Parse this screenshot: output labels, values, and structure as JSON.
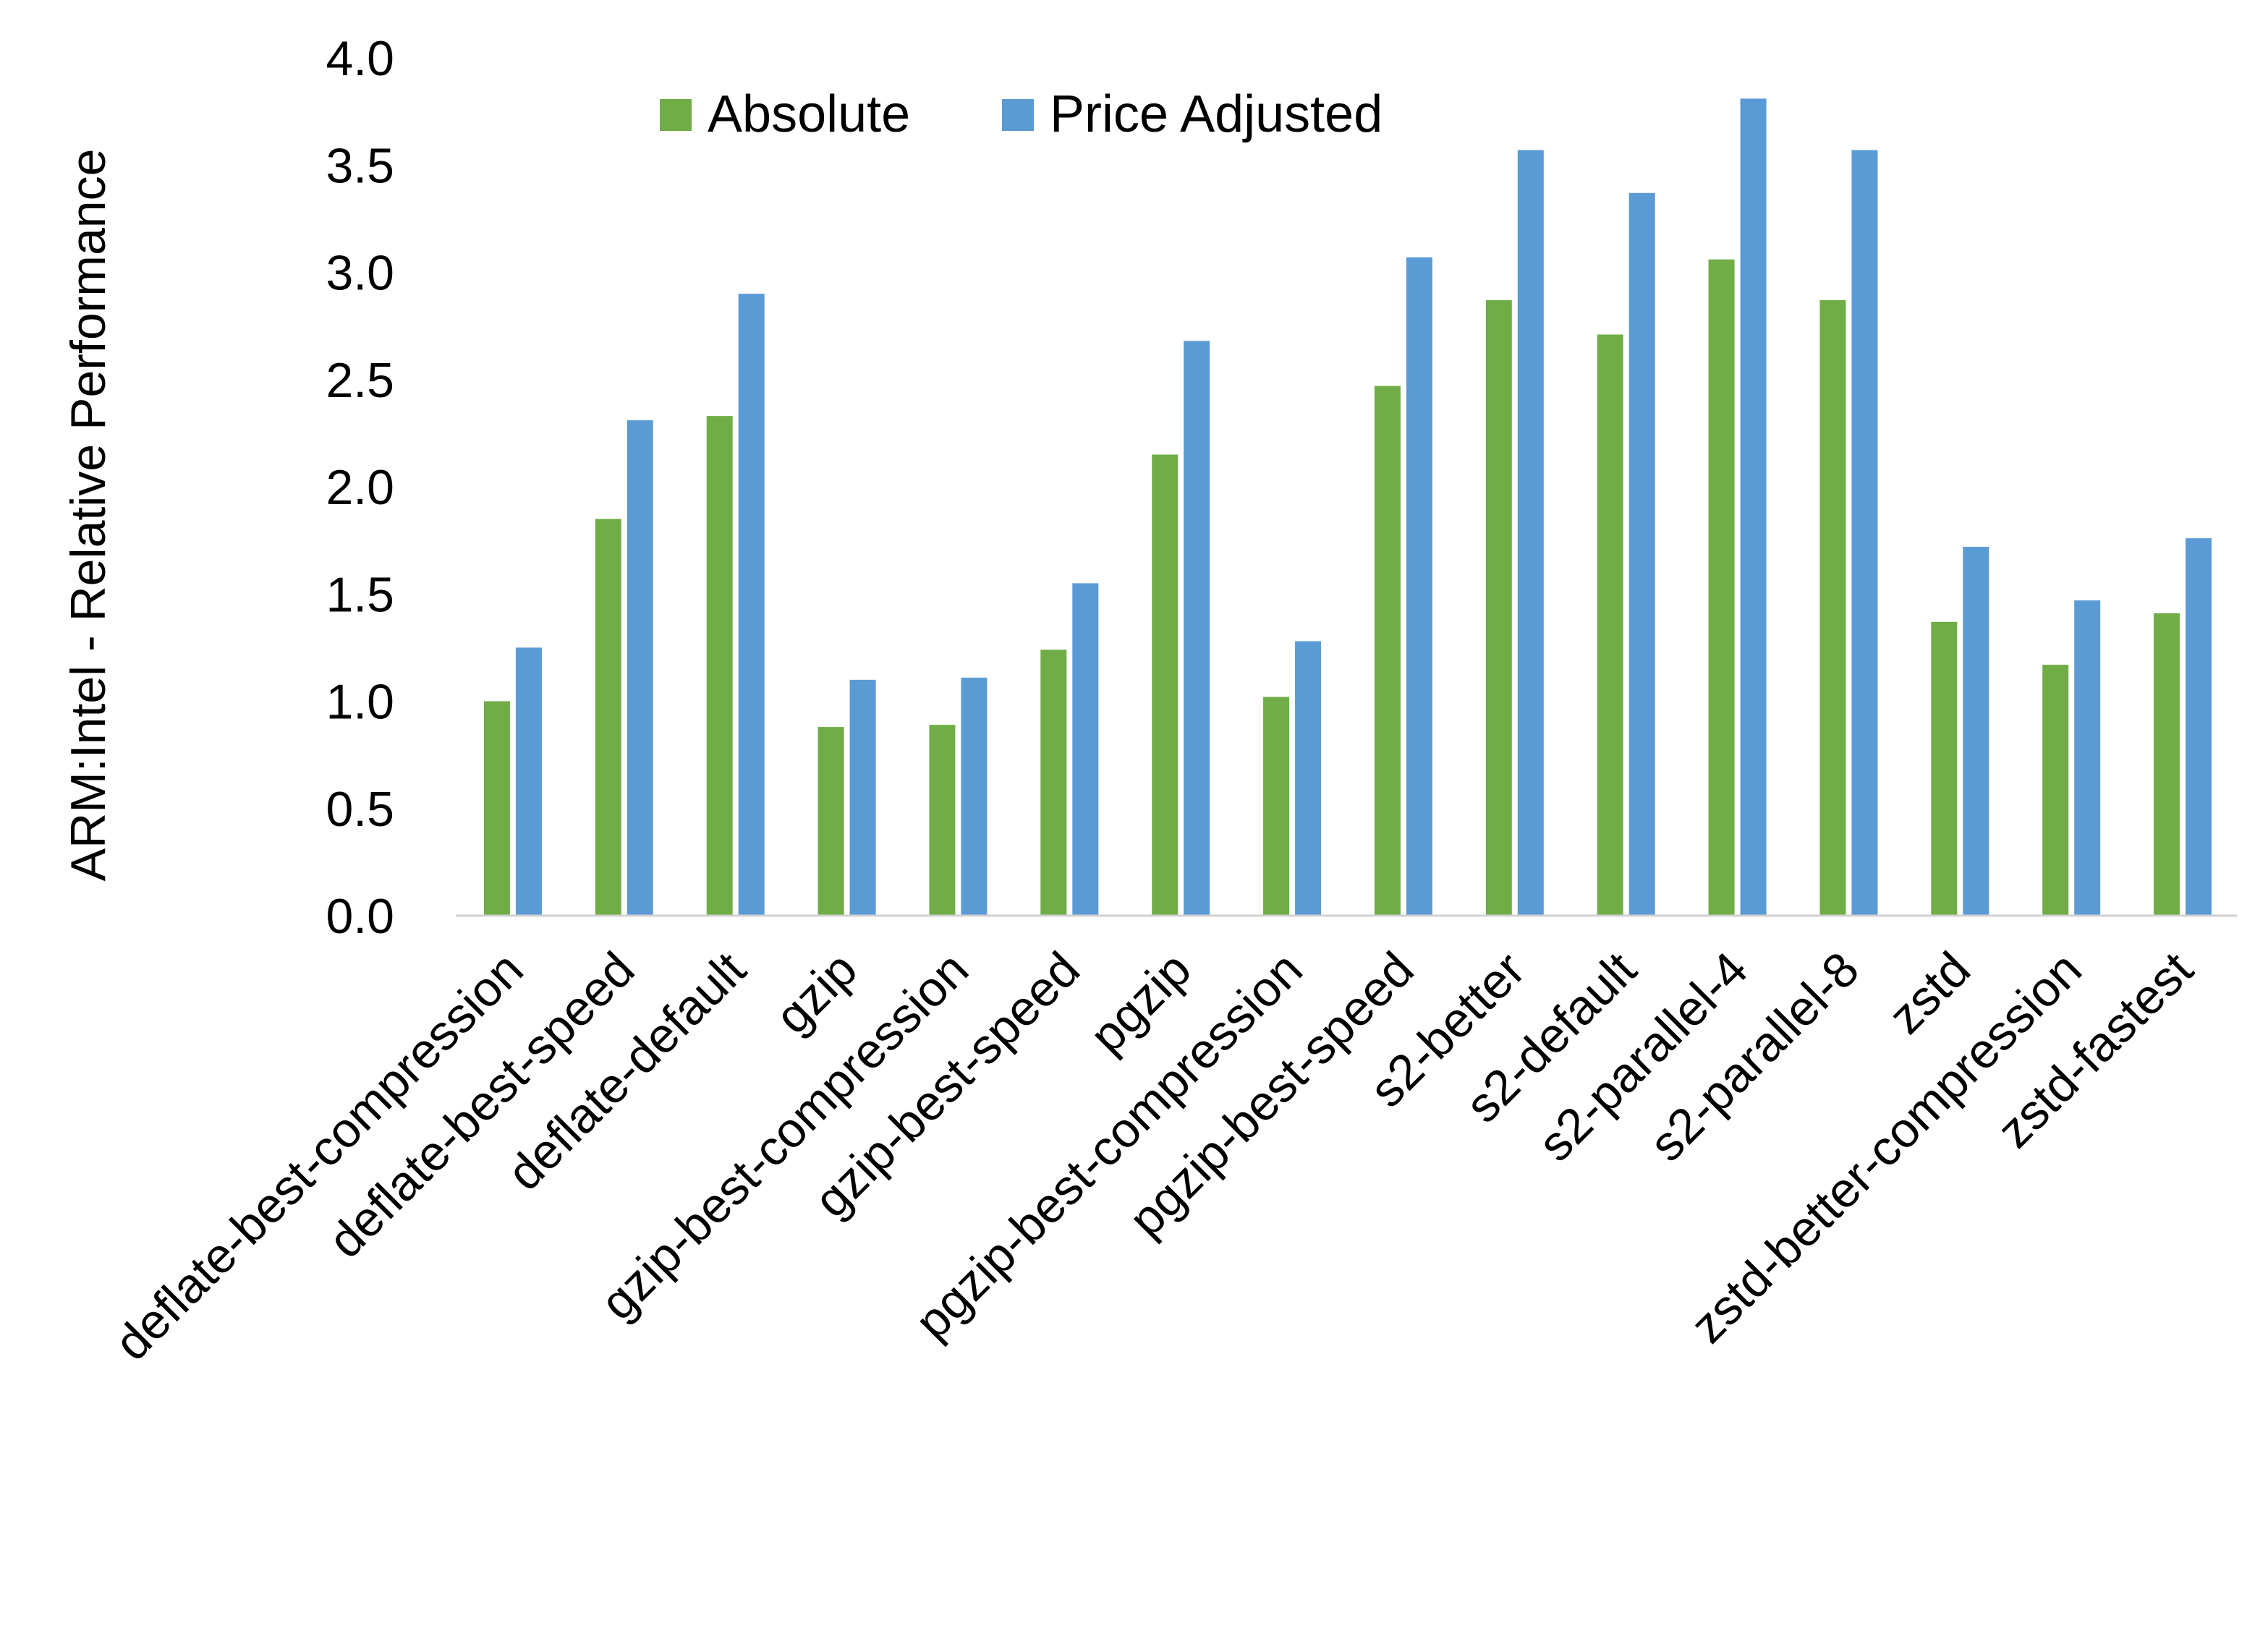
{
  "chart_data": {
    "type": "bar",
    "title": "",
    "xlabel": "",
    "ylabel": "ARM:Intel - Relative Performance",
    "ylim": [
      0,
      4
    ],
    "yticks": [
      "0.0",
      "0.5",
      "1.0",
      "1.5",
      "2.0",
      "2.5",
      "3.0",
      "3.5",
      "4.0"
    ],
    "grid": false,
    "legend_position": "top",
    "categories": [
      "deflate-best-compression",
      "deflate-best-speed",
      "deflate-default",
      "gzip",
      "gzip-best-compression",
      "gzip-best-speed",
      "pgzip",
      "pgzip-best-compression",
      "pgzip-best-speed",
      "s2-better",
      "s2-default",
      "s2-parallel-4",
      "s2-parallel-8",
      "zstd",
      "zstd-better-compression",
      "zstd-fastest"
    ],
    "series": [
      {
        "name": "Absolute",
        "color": "#70AD47",
        "values": [
          1.0,
          1.85,
          2.33,
          0.88,
          0.89,
          1.24,
          2.15,
          1.02,
          2.47,
          2.87,
          2.71,
          3.06,
          2.87,
          1.37,
          1.17,
          1.41
        ]
      },
      {
        "name": "Price Adjusted",
        "color": "#5B9BD5",
        "values": [
          1.25,
          2.31,
          2.9,
          1.1,
          1.11,
          1.55,
          2.68,
          1.28,
          3.07,
          3.57,
          3.37,
          3.81,
          3.57,
          1.72,
          1.47,
          1.76
        ]
      }
    ]
  }
}
